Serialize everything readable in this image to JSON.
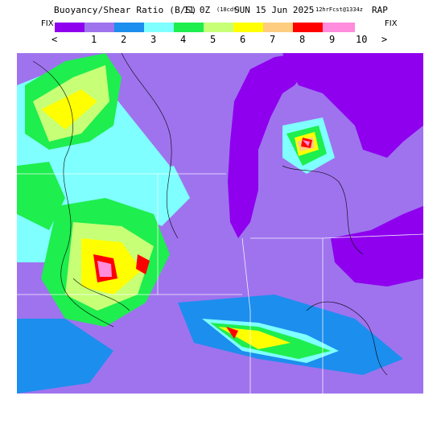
{
  "header": {
    "title": "Buoyancy/Shear Ratio (B/S)",
    "cycle_time": "11 0Z",
    "valid_time": "(18cdt)",
    "date": "SUN 15 Jun 2025",
    "forecast_info": "12hrFcst@1334z",
    "model": "RAP"
  },
  "legend": {
    "left_fix": "FIX",
    "right_fix": "FIX",
    "low_arrow": "<",
    "high_arrow": ">",
    "ticks": [
      "1",
      "2",
      "3",
      "4",
      "5",
      "6",
      "7",
      "8",
      "9",
      "10"
    ],
    "colors": [
      "#8E00EE",
      "#9F73EE",
      "#1C8EEE",
      "#7FFFFF",
      "#1EEE4E",
      "#C7FF77",
      "#FFFF00",
      "#FFCD7F",
      "#FF0000",
      "#FF8CDC"
    ]
  },
  "map": {
    "background_color": "#9F73EE",
    "lake_color": "#8E00EE"
  }
}
